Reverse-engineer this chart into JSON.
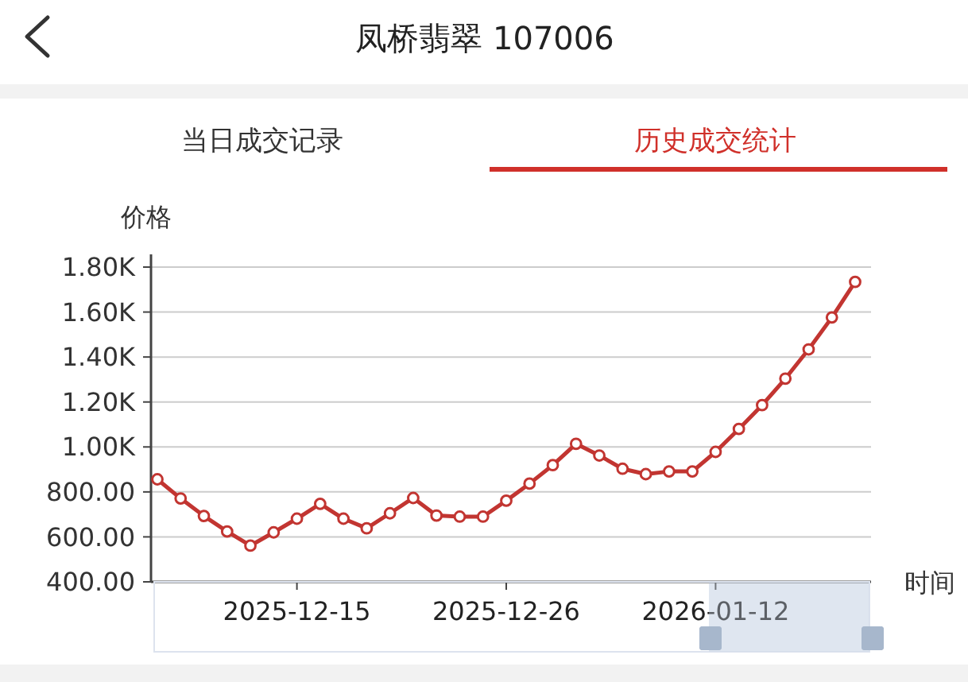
{
  "chart_data": {
    "type": "line",
    "title": "凤桥翡翠 107006",
    "annotations": [
      "当日成交记录",
      "历史成交统计"
    ],
    "xlabel": "时间",
    "ylabel": "价格",
    "categories": [
      null,
      null,
      null,
      null,
      null,
      null,
      "2025-12-15",
      null,
      null,
      null,
      null,
      null,
      null,
      null,
      null,
      "2025-12-26",
      null,
      null,
      null,
      null,
      null,
      null,
      null,
      null,
      "2026-01-12",
      null,
      null,
      null,
      null,
      null,
      null
    ],
    "series": [
      {
        "color": "#c23531",
        "values": [
          856,
          771,
          693,
          624,
          561,
          620,
          681,
          747,
          681,
          638,
          705,
          773,
          695,
          690,
          690,
          761,
          837,
          919,
          1014,
          962,
          903,
          879,
          891,
          891,
          978,
          1080,
          1186,
          1304,
          1434,
          1576,
          1734
        ]
      }
    ],
    "ylim": [
      400,
      1800
    ],
    "yticks": [
      {
        "value": 400,
        "label": "400.00"
      },
      {
        "value": 600,
        "label": "600.00"
      },
      {
        "value": 800,
        "label": "800.00"
      },
      {
        "value": 1000,
        "label": "1.00K"
      },
      {
        "value": 1200,
        "label": "1.20K"
      },
      {
        "value": 1400,
        "label": "1.40K"
      },
      {
        "value": 1600,
        "label": "1.60K"
      },
      {
        "value": 1800,
        "label": "1.80K"
      }
    ],
    "grid": "y",
    "marker": "circle",
    "line_style": "solid"
  }
}
